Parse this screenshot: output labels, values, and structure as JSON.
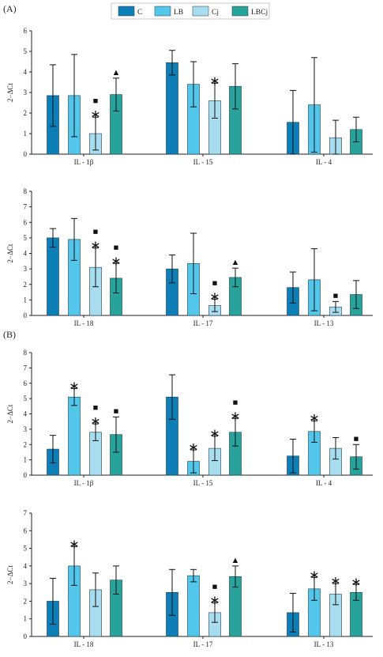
{
  "figure": {
    "panel_labels": [
      "(A)",
      "(B)"
    ],
    "legend": [
      {
        "label": "C",
        "color": "#0D7FB6"
      },
      {
        "label": "LB",
        "color": "#52C6EB"
      },
      {
        "label": "Cj",
        "color": "#A8DDEF"
      },
      {
        "label": "LBCj",
        "color": "#27A39C"
      }
    ],
    "ylabel": "2−ΔCt"
  },
  "chart_data": [
    {
      "type": "bar",
      "panel": "A",
      "categories": [
        "IL - 1β",
        "IL - 15",
        "IL - 4"
      ],
      "ylim": [
        0,
        6
      ],
      "yticks": [
        0,
        1,
        2,
        3,
        4,
        5,
        6
      ],
      "series": [
        {
          "name": "C",
          "values": [
            2.85,
            4.45,
            1.55
          ],
          "errors": [
            1.5,
            0.6,
            1.55
          ]
        },
        {
          "name": "LB",
          "values": [
            2.85,
            3.4,
            2.4
          ],
          "errors": [
            2.0,
            1.1,
            2.3
          ]
        },
        {
          "name": "Cj",
          "values": [
            1.0,
            2.6,
            0.8
          ],
          "errors": [
            0.8,
            0.85,
            0.85
          ]
        },
        {
          "name": "LBCj",
          "values": [
            2.9,
            3.3,
            1.2
          ],
          "errors": [
            0.8,
            1.1,
            0.6
          ]
        }
      ],
      "markers": [
        {
          "category": 0,
          "series": 2,
          "symbols": [
            "■",
            "∗"
          ]
        },
        {
          "category": 0,
          "series": 3,
          "symbols": [
            "▲"
          ]
        },
        {
          "category": 1,
          "series": 2,
          "symbols": [
            "∗"
          ]
        }
      ]
    },
    {
      "type": "bar",
      "panel": "A",
      "categories": [
        "IL - 18",
        "IL - 17",
        "IL - 13"
      ],
      "ylim": [
        0,
        8
      ],
      "yticks": [
        0,
        1,
        2,
        3,
        4,
        5,
        6,
        7,
        8
      ],
      "series": [
        {
          "name": "C",
          "values": [
            5.0,
            3.0,
            1.8
          ],
          "errors": [
            0.6,
            0.9,
            1.0
          ]
        },
        {
          "name": "LB",
          "values": [
            4.9,
            3.35,
            2.3
          ],
          "errors": [
            1.35,
            1.95,
            2.0
          ]
        },
        {
          "name": "Cj",
          "values": [
            3.1,
            0.65,
            0.55
          ],
          "errors": [
            1.25,
            0.4,
            0.35
          ]
        },
        {
          "name": "LBCj",
          "values": [
            2.4,
            2.45,
            1.35
          ],
          "errors": [
            0.95,
            0.6,
            0.9
          ]
        }
      ],
      "markers": [
        {
          "category": 0,
          "series": 2,
          "symbols": [
            "■",
            "∗"
          ]
        },
        {
          "category": 0,
          "series": 3,
          "symbols": [
            "■",
            "∗"
          ]
        },
        {
          "category": 1,
          "series": 2,
          "symbols": [
            "■",
            "∗"
          ]
        },
        {
          "category": 1,
          "series": 3,
          "symbols": [
            "▲"
          ]
        },
        {
          "category": 2,
          "series": 2,
          "symbols": [
            "■"
          ]
        }
      ]
    },
    {
      "type": "bar",
      "panel": "B",
      "categories": [
        "IL - 1β",
        "IL - 15",
        "IL - 4"
      ],
      "ylim": [
        0,
        8
      ],
      "yticks": [
        0,
        1,
        2,
        3,
        4,
        5,
        6,
        7,
        8
      ],
      "series": [
        {
          "name": "C",
          "values": [
            1.7,
            5.1,
            1.25
          ],
          "errors": [
            0.9,
            1.45,
            1.1
          ]
        },
        {
          "name": "LB",
          "values": [
            5.1,
            0.9,
            2.85
          ],
          "errors": [
            0.55,
            0.75,
            0.7
          ]
        },
        {
          "name": "Cj",
          "values": [
            2.8,
            1.75,
            1.75
          ],
          "errors": [
            0.55,
            0.8,
            0.7
          ]
        },
        {
          "name": "LBCj",
          "values": [
            2.65,
            2.8,
            1.2
          ],
          "errors": [
            1.15,
            0.9,
            0.8
          ]
        }
      ],
      "markers": [
        {
          "category": 0,
          "series": 1,
          "symbols": [
            "∗"
          ]
        },
        {
          "category": 0,
          "series": 2,
          "symbols": [
            "■",
            "∗"
          ]
        },
        {
          "category": 0,
          "series": 3,
          "symbols": [
            "■"
          ]
        },
        {
          "category": 1,
          "series": 1,
          "symbols": [
            "∗"
          ]
        },
        {
          "category": 1,
          "series": 2,
          "symbols": [
            "∗"
          ]
        },
        {
          "category": 1,
          "series": 3,
          "symbols": [
            "■",
            "∗"
          ]
        },
        {
          "category": 2,
          "series": 1,
          "symbols": [
            "∗"
          ]
        },
        {
          "category": 2,
          "series": 3,
          "symbols": [
            "■"
          ]
        }
      ]
    },
    {
      "type": "bar",
      "panel": "B",
      "categories": [
        "IL - 18",
        "IL - 17",
        "IL - 13"
      ],
      "ylim": [
        0,
        7
      ],
      "yticks": [
        0,
        1,
        2,
        3,
        4,
        5,
        6,
        7
      ],
      "series": [
        {
          "name": "C",
          "values": [
            2.0,
            2.5,
            1.35
          ],
          "errors": [
            1.3,
            1.3,
            1.1
          ]
        },
        {
          "name": "LB",
          "values": [
            4.0,
            3.45,
            2.7
          ],
          "errors": [
            1.1,
            0.35,
            0.65
          ]
        },
        {
          "name": "Cj",
          "values": [
            2.65,
            1.35,
            2.4
          ],
          "errors": [
            0.95,
            0.55,
            0.6
          ]
        },
        {
          "name": "LBCj",
          "values": [
            3.2,
            3.4,
            2.5
          ],
          "errors": [
            0.8,
            0.6,
            0.45
          ]
        }
      ],
      "markers": [
        {
          "category": 0,
          "series": 1,
          "symbols": [
            "∗"
          ]
        },
        {
          "category": 1,
          "series": 2,
          "symbols": [
            "■",
            "∗"
          ]
        },
        {
          "category": 1,
          "series": 3,
          "symbols": [
            "▲"
          ]
        },
        {
          "category": 2,
          "series": 1,
          "symbols": [
            "∗"
          ]
        },
        {
          "category": 2,
          "series": 2,
          "symbols": [
            "∗"
          ]
        },
        {
          "category": 2,
          "series": 3,
          "symbols": [
            "∗"
          ]
        }
      ]
    }
  ]
}
